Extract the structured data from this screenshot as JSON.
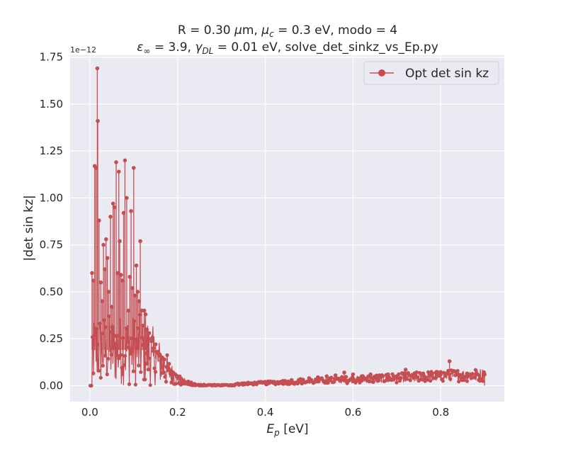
{
  "chart_data": {
    "type": "line",
    "title_line1": "R = 0.30 μm, μc = 0.3 eV, modo = 4",
    "title_line2": "ε∞ = 3.9, γDL = 0.01 eV, solve_det_sinkz_vs_Ep.py",
    "xlabel": "Ep [eV]",
    "ylabel": "|det sin kz|",
    "y_offset_label": "1e−12",
    "xlim": [
      -0.045,
      0.945
    ],
    "ylim": [
      -0.085,
      1.76
    ],
    "y_scale_factor": 1e-12,
    "x_ticks": [
      0.0,
      0.2,
      0.4,
      0.6,
      0.8
    ],
    "x_tick_labels": [
      "0.0",
      "0.2",
      "0.4",
      "0.6",
      "0.8"
    ],
    "y_ticks": [
      0.0,
      0.25,
      0.5,
      0.75,
      1.0,
      1.25,
      1.5,
      1.75
    ],
    "y_tick_labels": [
      "0.00",
      "0.25",
      "0.50",
      "0.75",
      "1.00",
      "1.25",
      "1.50",
      "1.75"
    ],
    "grid": true,
    "legend_position": "top-right",
    "series": [
      {
        "name": "Opt det sin kz",
        "color": "#c44e52",
        "marker": "circle",
        "x": [
          0.005,
          0.008,
          0.011,
          0.014,
          0.017,
          0.018,
          0.021,
          0.025,
          0.028,
          0.031,
          0.034,
          0.037,
          0.04,
          0.043,
          0.047,
          0.05,
          0.053,
          0.056,
          0.06,
          0.063,
          0.066,
          0.068,
          0.071,
          0.074,
          0.077,
          0.08,
          0.084,
          0.088,
          0.091,
          0.094,
          0.097,
          0.1,
          0.103,
          0.106,
          0.109,
          0.112,
          0.115,
          0.118,
          0.121,
          0.124,
          0.127,
          0.13,
          0.135,
          0.14,
          0.145,
          0.15,
          0.155,
          0.16,
          0.165,
          0.17,
          0.175,
          0.18,
          0.185,
          0.19,
          0.195,
          0.2,
          0.205,
          0.21,
          0.215,
          0.22,
          0.225,
          0.23,
          0.235,
          0.24,
          0.25,
          0.26,
          0.28,
          0.3,
          0.32,
          0.34,
          0.36,
          0.38,
          0.4,
          0.42,
          0.44,
          0.46,
          0.48,
          0.5,
          0.52,
          0.54,
          0.56,
          0.58,
          0.6,
          0.62,
          0.64,
          0.66,
          0.68,
          0.7,
          0.72,
          0.74,
          0.76,
          0.78,
          0.8,
          0.82,
          0.84,
          0.86,
          0.88,
          0.9
        ],
        "y": [
          0.6,
          0.56,
          1.17,
          1.16,
          1.69,
          1.41,
          0.88,
          0.55,
          0.45,
          0.75,
          0.62,
          0.78,
          0.68,
          0.5,
          0.9,
          0.42,
          0.97,
          0.95,
          1.19,
          0.6,
          1.14,
          0.77,
          0.59,
          0.56,
          0.92,
          1.2,
          1.0,
          0.4,
          0.58,
          0.93,
          0.52,
          1.16,
          0.48,
          0.64,
          0.5,
          0.45,
          0.77,
          0.4,
          0.32,
          0.4,
          0.38,
          0.3,
          0.28,
          0.25,
          0.2,
          0.22,
          0.18,
          0.16,
          0.15,
          0.14,
          0.1,
          0.09,
          0.08,
          0.07,
          0.06,
          0.05,
          0.04,
          0.03,
          0.02,
          0.012,
          0.008,
          0.005,
          0.003,
          0.002,
          0.001,
          0.001,
          0.001,
          0.002,
          0.003,
          0.005,
          0.008,
          0.012,
          0.015,
          0.02,
          0.025,
          0.03,
          0.035,
          0.04,
          0.045,
          0.05,
          0.055,
          0.07,
          0.06,
          0.05,
          0.06,
          0.055,
          0.06,
          0.05,
          0.085,
          0.06,
          0.065,
          0.055,
          0.06,
          0.13,
          0.06,
          0.065,
          0.06,
          0.06
        ]
      }
    ]
  }
}
